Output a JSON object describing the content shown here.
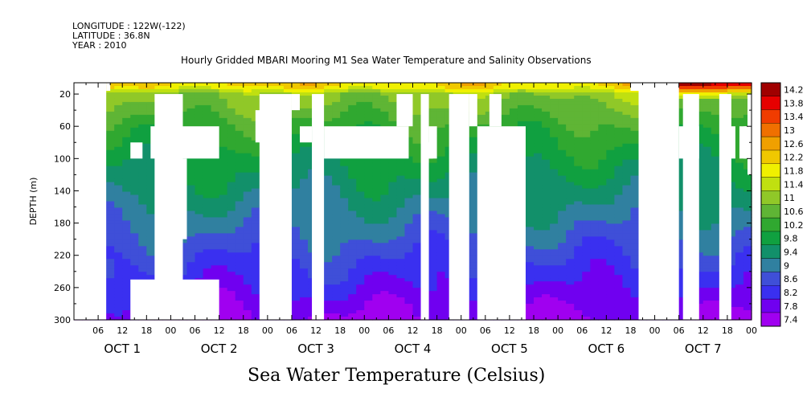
{
  "header": {
    "longitude": "LONGITUDE : 122W(-122)",
    "latitude": "LATITUDE : 36.8N",
    "year": "YEAR : 2010"
  },
  "title": "Hourly Gridded MBARI Mooring M1 Sea Water Temperature and Salinity Observations",
  "footer_title": "Sea Water Temperature (Celsius)",
  "colors": {
    "palette": [
      "#a000f0",
      "#7000f0",
      "#3a30f0",
      "#3f4fd8",
      "#3080a0",
      "#12906a",
      "#10a040",
      "#30a830",
      "#5fb535",
      "#90c828",
      "#c0e010",
      "#f0f000",
      "#f0c800",
      "#f0a000",
      "#f07000",
      "#f03c00",
      "#e60000",
      "#a00000"
    ]
  },
  "chart_data": {
    "type": "heatmap",
    "ylabel": "DEPTH (m)",
    "y_axis": {
      "ticks": [
        20,
        60,
        100,
        140,
        180,
        220,
        260,
        300
      ],
      "range": [
        6,
        300
      ],
      "inverted": true
    },
    "x_axis": {
      "hour_ticks": [
        "06",
        "12",
        "18",
        "00",
        "06",
        "12",
        "18",
        "00",
        "06",
        "12",
        "18",
        "00",
        "06",
        "12",
        "18",
        "00",
        "06",
        "12",
        "18",
        "00",
        "06",
        "12",
        "18",
        "00",
        "06",
        "12",
        "18",
        "00"
      ],
      "day_labels": [
        "OCT 1",
        "OCT 2",
        "OCT 3",
        "OCT 4",
        "OCT 5",
        "OCT 6",
        "OCT 7"
      ],
      "range_hours": [
        0,
        168
      ]
    },
    "colorbar": {
      "labels": [
        "14.2",
        "13.8",
        "13.4",
        "13",
        "12.6",
        "12.2",
        "11.8",
        "11.4",
        "11",
        "10.6",
        "10.2",
        "9.8",
        "9.4",
        "9",
        "8.6",
        "8.2",
        "7.8",
        "7.4"
      ],
      "min": 7.4,
      "max": 14.2
    },
    "approx_temperature_profile": [
      {
        "depth": 10,
        "temp": 12.0
      },
      {
        "depth": 20,
        "temp": 11.0
      },
      {
        "depth": 60,
        "temp": 10.3
      },
      {
        "depth": 100,
        "temp": 9.8
      },
      {
        "depth": 140,
        "temp": 9.4
      },
      {
        "depth": 180,
        "temp": 9.0
      },
      {
        "depth": 220,
        "temp": 8.6
      },
      {
        "depth": 260,
        "temp": 8.2
      },
      {
        "depth": 300,
        "temp": 7.7
      }
    ],
    "warm_surface_period_hours": [
      146,
      168
    ],
    "missing_data_regions_hours_depth": [
      {
        "x": [
          0,
          8
        ],
        "y": [
          6,
          300
        ]
      },
      {
        "x": [
          8,
          9
        ],
        "y": [
          6,
          16
        ]
      },
      {
        "x": [
          14,
          17
        ],
        "y": [
          80,
          100
        ]
      },
      {
        "x": [
          14,
          36
        ],
        "y": [
          250,
          300
        ]
      },
      {
        "x": [
          19,
          27
        ],
        "y": [
          60,
          100
        ]
      },
      {
        "x": [
          20,
          27
        ],
        "y": [
          20,
          300
        ]
      },
      {
        "x": [
          27,
          36
        ],
        "y": [
          60,
          100
        ]
      },
      {
        "x": [
          24,
          28
        ],
        "y": [
          100,
          200
        ]
      },
      {
        "x": [
          46,
          54
        ],
        "y": [
          20,
          300
        ]
      },
      {
        "x": [
          45,
          47
        ],
        "y": [
          40,
          80
        ]
      },
      {
        "x": [
          54,
          56
        ],
        "y": [
          20,
          40
        ]
      },
      {
        "x": [
          56,
          59
        ],
        "y": [
          60,
          80
        ]
      },
      {
        "x": [
          59,
          62
        ],
        "y": [
          20,
          300
        ]
      },
      {
        "x": [
          62,
          83
        ],
        "y": [
          60,
          100
        ]
      },
      {
        "x": [
          80,
          84
        ],
        "y": [
          20,
          60
        ]
      },
      {
        "x": [
          86,
          88
        ],
        "y": [
          20,
          300
        ]
      },
      {
        "x": [
          88,
          90
        ],
        "y": [
          60,
          100
        ]
      },
      {
        "x": [
          87,
          89
        ],
        "y": [
          80,
          100
        ]
      },
      {
        "x": [
          93,
          98
        ],
        "y": [
          20,
          300
        ]
      },
      {
        "x": [
          98,
          100
        ],
        "y": [
          20,
          60
        ]
      },
      {
        "x": [
          100,
          112
        ],
        "y": [
          60,
          300
        ]
      },
      {
        "x": [
          103,
          106
        ],
        "y": [
          20,
          60
        ]
      },
      {
        "x": [
          140,
          150
        ],
        "y": [
          6,
          300
        ]
      },
      {
        "x": [
          138,
          140
        ],
        "y": [
          6,
          16
        ]
      },
      {
        "x": [
          150,
          155
        ],
        "y": [
          60,
          100
        ]
      },
      {
        "x": [
          167,
          170
        ],
        "y": [
          20,
          120
        ]
      },
      {
        "x": [
          166,
          168
        ],
        "y": [
          60,
          100
        ]
      },
      {
        "x": [
          151,
          155
        ],
        "y": [
          20,
          300
        ]
      },
      {
        "x": [
          160,
          163
        ],
        "y": [
          20,
          300
        ]
      },
      {
        "x": [
          161,
          164
        ],
        "y": [
          60,
          100
        ]
      },
      {
        "x": [
          165,
          168
        ],
        "y": [
          60,
          100
        ]
      }
    ]
  }
}
